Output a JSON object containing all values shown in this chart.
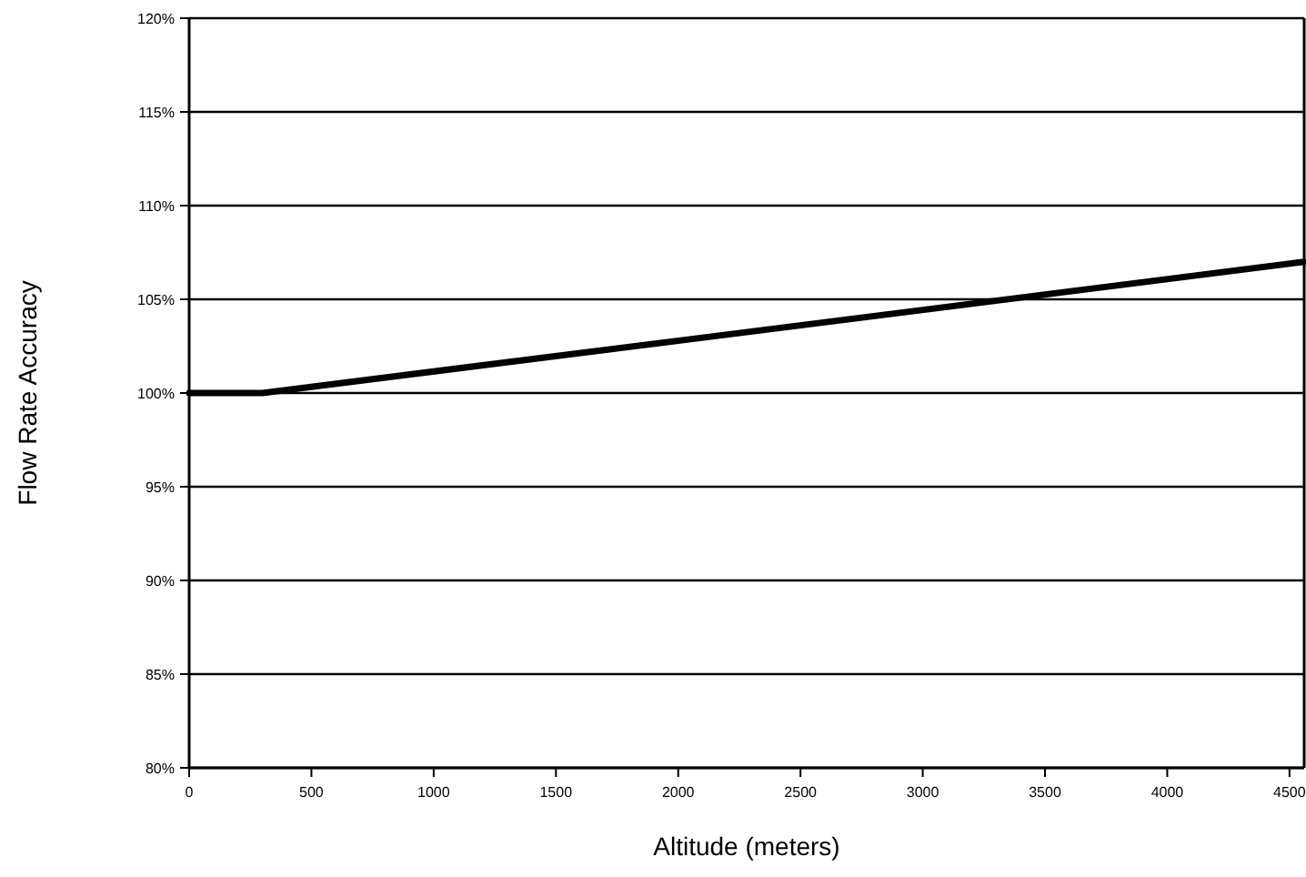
{
  "chart_data": {
    "type": "line",
    "xlabel": "Altitude (meters)",
    "ylabel": "Flow Rate Accuracy",
    "x": [
      0,
      300,
      4560
    ],
    "series": [
      {
        "color": "#000000",
        "values": [
          100,
          100,
          107
        ]
      }
    ],
    "xlim": [
      0,
      4560
    ],
    "xticks": [
      0,
      500,
      1000,
      1500,
      2000,
      2500,
      3000,
      3500,
      4000,
      4500
    ],
    "ylim": [
      80,
      120
    ],
    "yticks": [
      {
        "value": 80,
        "label": "80%"
      },
      {
        "value": 85,
        "label": "85%"
      },
      {
        "value": 90,
        "label": "90%"
      },
      {
        "value": 95,
        "label": "95%"
      },
      {
        "value": 100,
        "label": "100%"
      },
      {
        "value": 105,
        "label": "105%"
      },
      {
        "value": 110,
        "label": "110%"
      },
      {
        "value": 115,
        "label": "115%"
      },
      {
        "value": 120,
        "label": "120%"
      }
    ],
    "grid": "y",
    "marker": "none",
    "line_style": "solid"
  }
}
